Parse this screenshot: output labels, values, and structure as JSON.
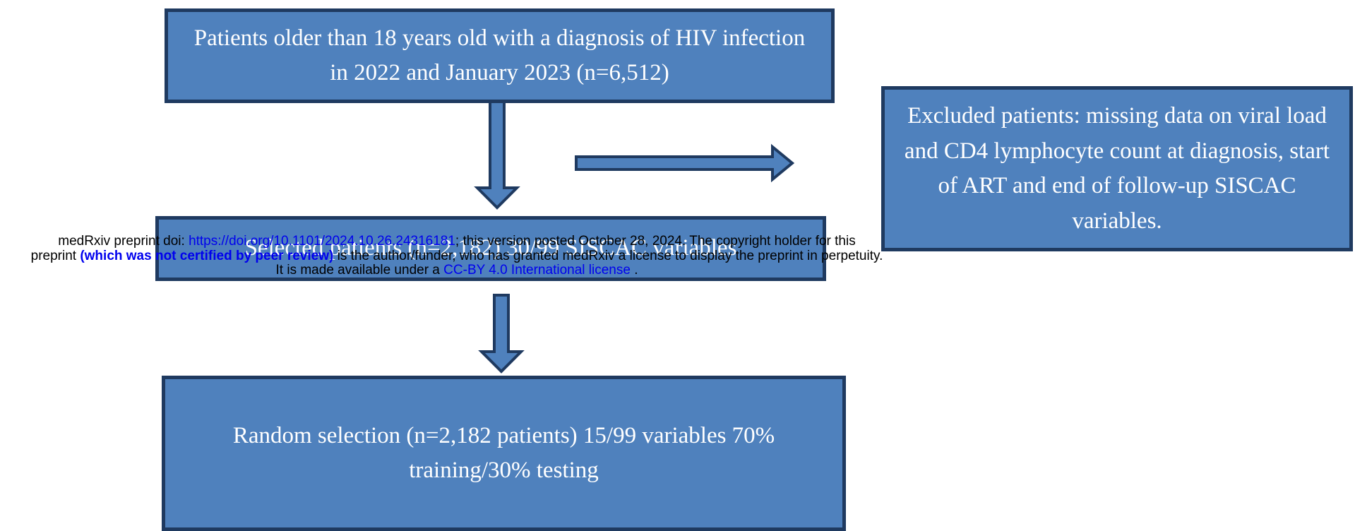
{
  "nodes": [
    {
      "label": "Patients older than 18 years old with a diagnosis of HIV infection in 2022 and January 2023 (n=6,512)"
    },
    {
      "label": "Excluded patients: missing data on viral load and CD4 lymphocyte count at diagnosis, start of ART and end of follow-up SISCAC variables."
    },
    {
      "label": "Selected patients (n=2,182) 30/99 SISCAC variables"
    },
    {
      "label": "Random selection (n=2,182 patients) 15/99 variables 70% training/30% testing"
    }
  ],
  "watermark": {
    "line1_prefix": "medRxiv preprint doi:",
    "doi_link": "https://doi.org/10.1101/2024.10.26.24316181",
    "line1_suffix": "; this version posted October 28, 2024. The copyright holder for this",
    "line2_prefix": "preprint",
    "not_certified": "(which was not certified by peer review)",
    "line2_suffix": "is the author/funder, who has granted medRxiv a license to display the preprint in perpetuity.",
    "line3_prefix": "It is made available under a",
    "license_link": "CC-BY 4.0 International license",
    "line3_suffix": "."
  }
}
